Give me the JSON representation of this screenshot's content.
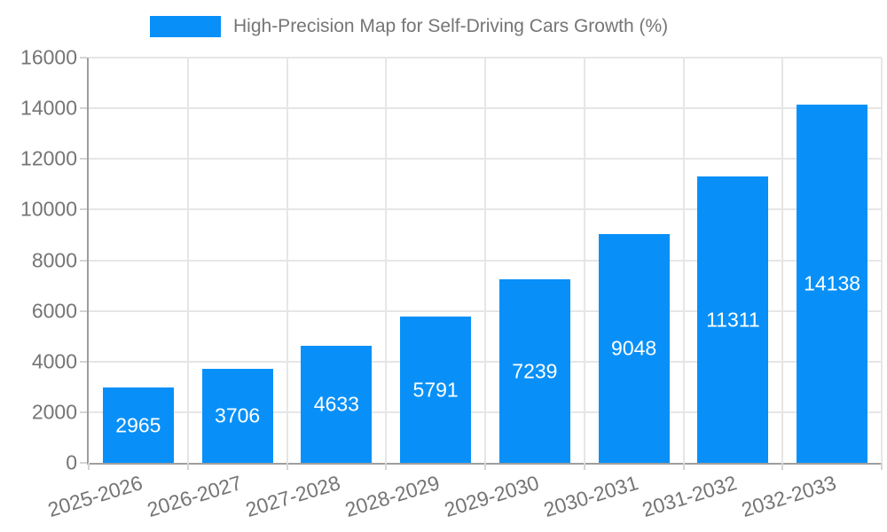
{
  "legend": {
    "series_label": "High-Precision Map for Self-Driving Cars Growth (%)"
  },
  "colors": {
    "bar": "#0890f8",
    "axis": "#9e9e9e",
    "grid": "#e6e6e6",
    "tick": "#d4d4d4",
    "label_text": "#757575",
    "bar_label_text": "#ffffff"
  },
  "chart_data": {
    "type": "bar",
    "title": "High-Precision Map for Self-Driving Cars Growth (%)",
    "categories": [
      "2025-2026",
      "2026-2027",
      "2027-2028",
      "2028-2029",
      "2029-2030",
      "2030-2031",
      "2031-2032",
      "2032-2033"
    ],
    "values": [
      2965,
      3706,
      4633,
      5791,
      7239,
      9048,
      11311,
      14138
    ],
    "xlabel": "",
    "ylabel": "",
    "ylim": [
      0,
      16000
    ],
    "yticks": [
      0,
      2000,
      4000,
      6000,
      8000,
      10000,
      12000,
      14000,
      16000
    ],
    "grid": true,
    "legend_position": "top",
    "bar_labels_inside": true
  }
}
